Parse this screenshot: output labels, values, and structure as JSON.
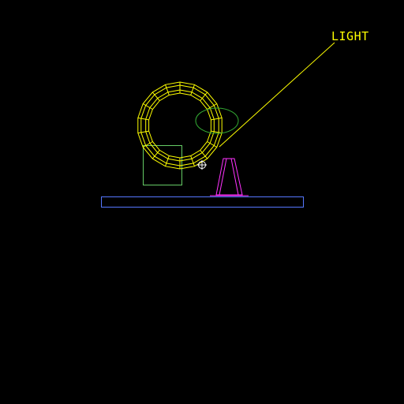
{
  "viewport": {
    "background_color": "#000000",
    "light_label": "LIGHT"
  },
  "colors": {
    "light": "#ffff00",
    "torus": "#ffff00",
    "selection_box": "#66cc66",
    "light_cone": "#33aa33",
    "cone_object": "#ff33ff",
    "ground_plane": "#5577ff",
    "cursor": "#ffffff"
  },
  "icons": {
    "cursor": "crosshair-circle-icon"
  }
}
